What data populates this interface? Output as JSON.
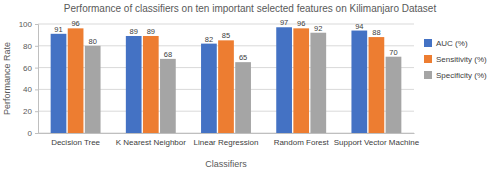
{
  "chart_data": {
    "type": "bar",
    "title": "Performance of classifiers on ten important selected features on Kilimanjaro Dataset",
    "x_label": "Classifiers",
    "y_label": "Performance Rate",
    "categories": [
      "Decision Tree",
      "K Nearest Neighbor",
      "Linear Regression",
      "Random Forest",
      "Support Vector Machine"
    ],
    "series": [
      {
        "name": "AUC (%)",
        "color": "#4472c4",
        "values": [
          91,
          89,
          82,
          97,
          94
        ]
      },
      {
        "name": "Sensitivity (%)",
        "color": "#ed7d31",
        "values": [
          96,
          89,
          85,
          96,
          88
        ]
      },
      {
        "name": "Specificity (%)",
        "color": "#a5a5a5",
        "values": [
          80,
          68,
          65,
          92,
          70
        ]
      }
    ],
    "ylim": [
      0,
      100
    ],
    "yticks": [
      0,
      20,
      40,
      60,
      80,
      100
    ],
    "grid": true,
    "legend": "right",
    "data_labels": true
  }
}
